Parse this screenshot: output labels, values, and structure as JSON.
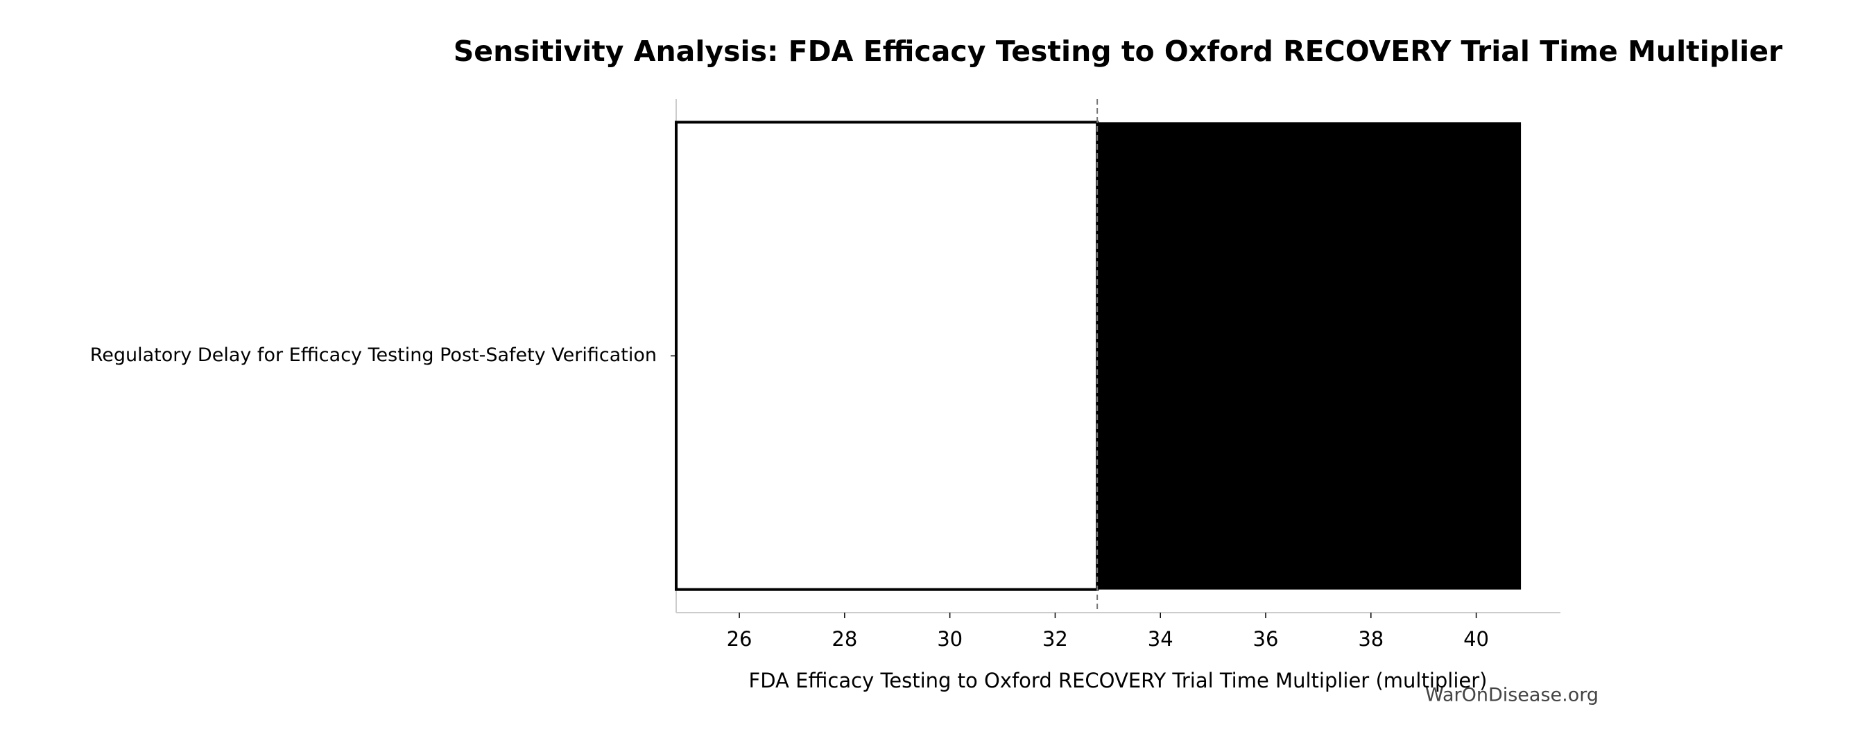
{
  "chart_data": {
    "type": "tornado",
    "title": "Sensitivity Analysis: FDA Efficacy Testing to Oxford RECOVERY Trial Time Multiplier",
    "xlabel": "FDA Efficacy Testing to Oxford RECOVERY Trial Time Multiplier (multiplier)",
    "categories": [
      "Regulatory Delay for Efficacy Testing Post-Safety Verification"
    ],
    "low_values": [
      24.8
    ],
    "high_values": [
      40.85
    ],
    "baseline": 32.8,
    "low_color": "#ffffff",
    "high_color": "#000000",
    "xlim": [
      24.8,
      41.6
    ],
    "xticks": [
      26,
      28,
      30,
      32,
      34,
      36,
      38,
      40
    ],
    "watermark": "WarOnDisease.org"
  }
}
